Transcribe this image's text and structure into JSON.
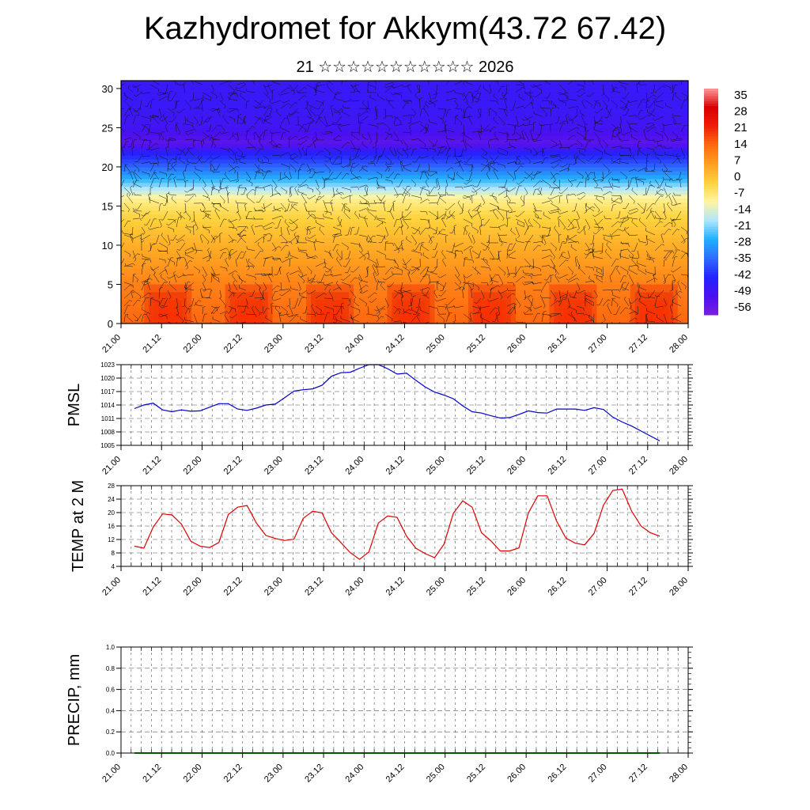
{
  "header": {
    "title": "Kazhydromet for Akkym(43.72 67.42)",
    "subtitle": "21 ☆☆☆☆☆☆☆☆☆☆☆ 2026"
  },
  "time_ticks": [
    "21.00",
    "21.12",
    "22.00",
    "22.12",
    "23.00",
    "23.12",
    "24.00",
    "24.12",
    "25.00",
    "25.12",
    "26.00",
    "26.12",
    "27.00",
    "27.12",
    "28.00"
  ],
  "chart_data": [
    {
      "id": "section",
      "type": "heatmap",
      "title": "Kazhydromet for Akkym(43.72 67.42)",
      "subtitle": "21 ☆☆☆☆☆☆☆☆☆☆☆ 2026",
      "xlabel": "",
      "ylabel": "",
      "y_ticks": [
        "0",
        "5",
        "10",
        "15",
        "20",
        "25",
        "30"
      ],
      "ylim": [
        0,
        31
      ],
      "colorbar_labels": [
        "35",
        "28",
        "21",
        "14",
        "7",
        "0",
        "-7",
        "-14",
        "-21",
        "-28",
        "-35",
        "-42",
        "-49",
        "-56"
      ],
      "colorbar_range": [
        -60,
        38
      ],
      "colors": [
        "#7a1fe0",
        "#4b10f0",
        "#2424ff",
        "#2f6cff",
        "#20b0ff",
        "#aee6ff",
        "#fff5a0",
        "#ffd23c",
        "#ffa020",
        "#ff6a10",
        "#f01e0a",
        "#d80000",
        "#ff9a9a"
      ],
      "temperature_profile": {
        "heights": [
          0,
          5,
          10,
          14,
          16,
          18,
          20,
          22,
          23,
          25,
          28,
          31
        ],
        "values": [
          14,
          10,
          3,
          -4,
          -10,
          -24,
          -36,
          -46,
          -55,
          -50,
          -48,
          -48
        ]
      },
      "vectors": "wind barbs overlay"
    },
    {
      "id": "pmsl",
      "type": "line",
      "ylabel": "PMSL",
      "y_ticks": [
        "1005",
        "1008",
        "1011",
        "1014",
        "1017",
        "1020",
        "1023"
      ],
      "ylim": [
        1005,
        1023
      ],
      "color": "#0000cc",
      "values": [
        1013.2,
        1014.0,
        1014.4,
        1012.9,
        1012.5,
        1012.9,
        1012.6,
        1012.7,
        1013.5,
        1014.3,
        1014.3,
        1013.1,
        1012.8,
        1013.3,
        1014.0,
        1014.2,
        1015.6,
        1017.1,
        1017.4,
        1017.6,
        1018.4,
        1020.4,
        1021.2,
        1021.3,
        1022.2,
        1023.0,
        1023.0,
        1022.1,
        1020.9,
        1021.1,
        1019.5,
        1018.0,
        1016.9,
        1016.2,
        1015.4,
        1013.8,
        1012.5,
        1012.2,
        1011.6,
        1011.1,
        1011.2,
        1011.9,
        1012.7,
        1012.3,
        1012.2,
        1013.1,
        1013.1,
        1013.1,
        1012.8,
        1013.4,
        1013.0,
        1011.3,
        1010.2,
        1009.3,
        1008.2,
        1007.1,
        1006.0
      ]
    },
    {
      "id": "temp2m",
      "type": "line",
      "ylabel": "TEMP at 2 M",
      "y_ticks": [
        "4",
        "8",
        "12",
        "16",
        "20",
        "24",
        "28"
      ],
      "ylim": [
        4,
        28
      ],
      "color": "#dd0000",
      "values": [
        10.0,
        9.4,
        15.7,
        19.6,
        19.3,
        16.6,
        11.5,
        10.0,
        9.6,
        11.1,
        19.4,
        21.6,
        22.1,
        16.9,
        13.2,
        12.3,
        11.7,
        12.1,
        18.3,
        20.4,
        19.9,
        14.0,
        11.1,
        8.1,
        6.1,
        8.3,
        16.9,
        19.0,
        18.6,
        13.0,
        9.4,
        7.8,
        6.6,
        10.6,
        19.8,
        23.5,
        21.6,
        14.0,
        11.6,
        8.6,
        8.6,
        9.5,
        19.9,
        25.0,
        25.0,
        17.5,
        12.4,
        10.9,
        10.4,
        13.8,
        22.2,
        26.6,
        27.0,
        20.5,
        16.0,
        14.0,
        13.0
      ]
    },
    {
      "id": "precip",
      "type": "line",
      "ylabel": "PRECIP, mm",
      "y_ticks": [
        "0.0",
        "0.2",
        "0.4",
        "0.6",
        "0.8",
        "1.0"
      ],
      "ylim": [
        0,
        1
      ],
      "color": "#00aa00",
      "values": [
        0,
        0,
        0,
        0,
        0,
        0,
        0,
        0,
        0,
        0,
        0,
        0,
        0,
        0,
        0,
        0,
        0,
        0,
        0,
        0,
        0,
        0,
        0,
        0,
        0,
        0,
        0,
        0,
        0,
        0,
        0,
        0,
        0,
        0,
        0,
        0,
        0,
        0,
        0,
        0,
        0,
        0,
        0,
        0,
        0,
        0,
        0,
        0,
        0,
        0,
        0,
        0,
        0,
        0,
        0,
        0,
        0
      ]
    }
  ]
}
